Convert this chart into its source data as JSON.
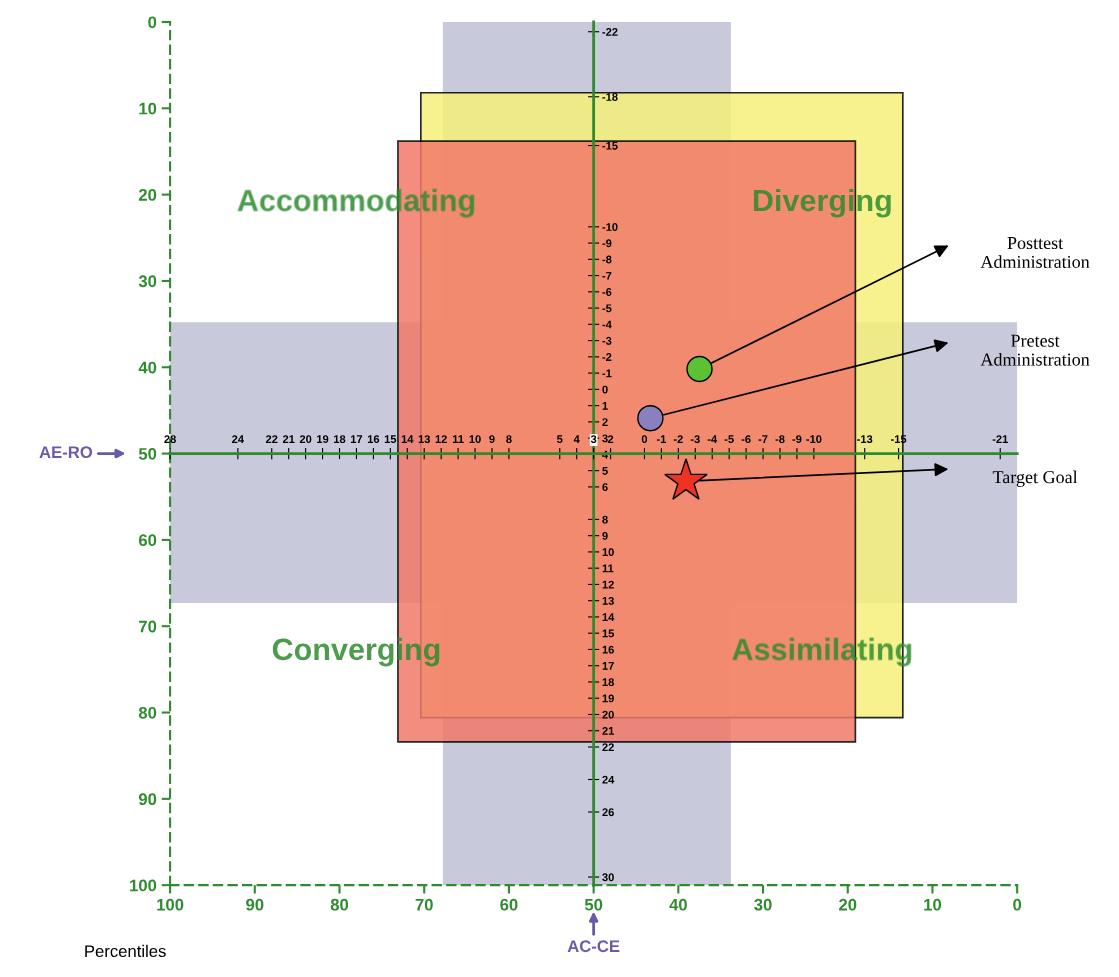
{
  "chart_data": {
    "type": "scatter",
    "xlabel": "AC-CE",
    "ylabel": "AE-RO",
    "xlim": [
      100,
      0
    ],
    "ylim": [
      100,
      0
    ],
    "xticks": [
      100,
      90,
      80,
      70,
      60,
      50,
      40,
      30,
      20,
      10,
      0
    ],
    "yticks": [
      0,
      10,
      20,
      30,
      40,
      50,
      60,
      70,
      80,
      90,
      100
    ],
    "x2lim": [
      28,
      -22
    ],
    "y2lim": [
      30.5,
      -22.6
    ],
    "x2ticks": [
      28,
      24,
      22,
      21,
      20,
      19,
      18,
      17,
      16,
      15,
      14,
      13,
      12,
      11,
      10,
      9,
      8,
      5,
      4,
      3,
      2,
      0,
      -1,
      -2,
      -3,
      -4,
      -5,
      -6,
      -7,
      -8,
      -9,
      -10,
      -13,
      -15,
      -21
    ],
    "y2ticks": [
      -22,
      -18,
      -15,
      -10,
      -9,
      -8,
      -7,
      -6,
      -5,
      -4,
      -3,
      -2,
      -1,
      0,
      1,
      2,
      3,
      4,
      5,
      6,
      8,
      9,
      10,
      11,
      12,
      13,
      14,
      15,
      16,
      17,
      18,
      19,
      20,
      21,
      22,
      24,
      26,
      30
    ],
    "bands": [
      {
        "axis": "x",
        "from": 67.8,
        "to": 33.8,
        "color": "#c9c9dc"
      },
      {
        "axis": "y",
        "from": 34.8,
        "to": 67.3,
        "color": "#c9c9dc"
      }
    ],
    "series": [
      {
        "type": "area",
        "color": "#f6f07a",
        "x": [
          70.4,
          70.4,
          13.5,
          13.5,
          70.4
        ],
        "values": [
          80.6,
          8.2,
          8.2,
          80.6,
          80.6
        ]
      },
      {
        "type": "area",
        "color": "#f27a6a",
        "x": [
          73.1,
          73.1,
          19.1,
          19.1,
          73.1
        ],
        "values": [
          83.4,
          13.8,
          13.8,
          83.4,
          83.4
        ]
      },
      {
        "name": "Posttest\nAdministration",
        "color": "#5cc234",
        "marker": "circle",
        "x": [
          37.5
        ],
        "values": [
          40.2
        ]
      },
      {
        "name": "Pretest\nAdministration",
        "color": "#8a80c0",
        "marker": "circle",
        "x": [
          43.3
        ],
        "values": [
          45.9
        ]
      },
      {
        "name": "Target Goal",
        "color": "#ee3322",
        "marker": "star",
        "x": [
          39.1
        ],
        "values": [
          53.2
        ]
      }
    ],
    "annotations": [
      "Accommodating",
      "Diverging",
      "Converging",
      "Assimilating",
      "Percentiles"
    ],
    "grid": false
  }
}
